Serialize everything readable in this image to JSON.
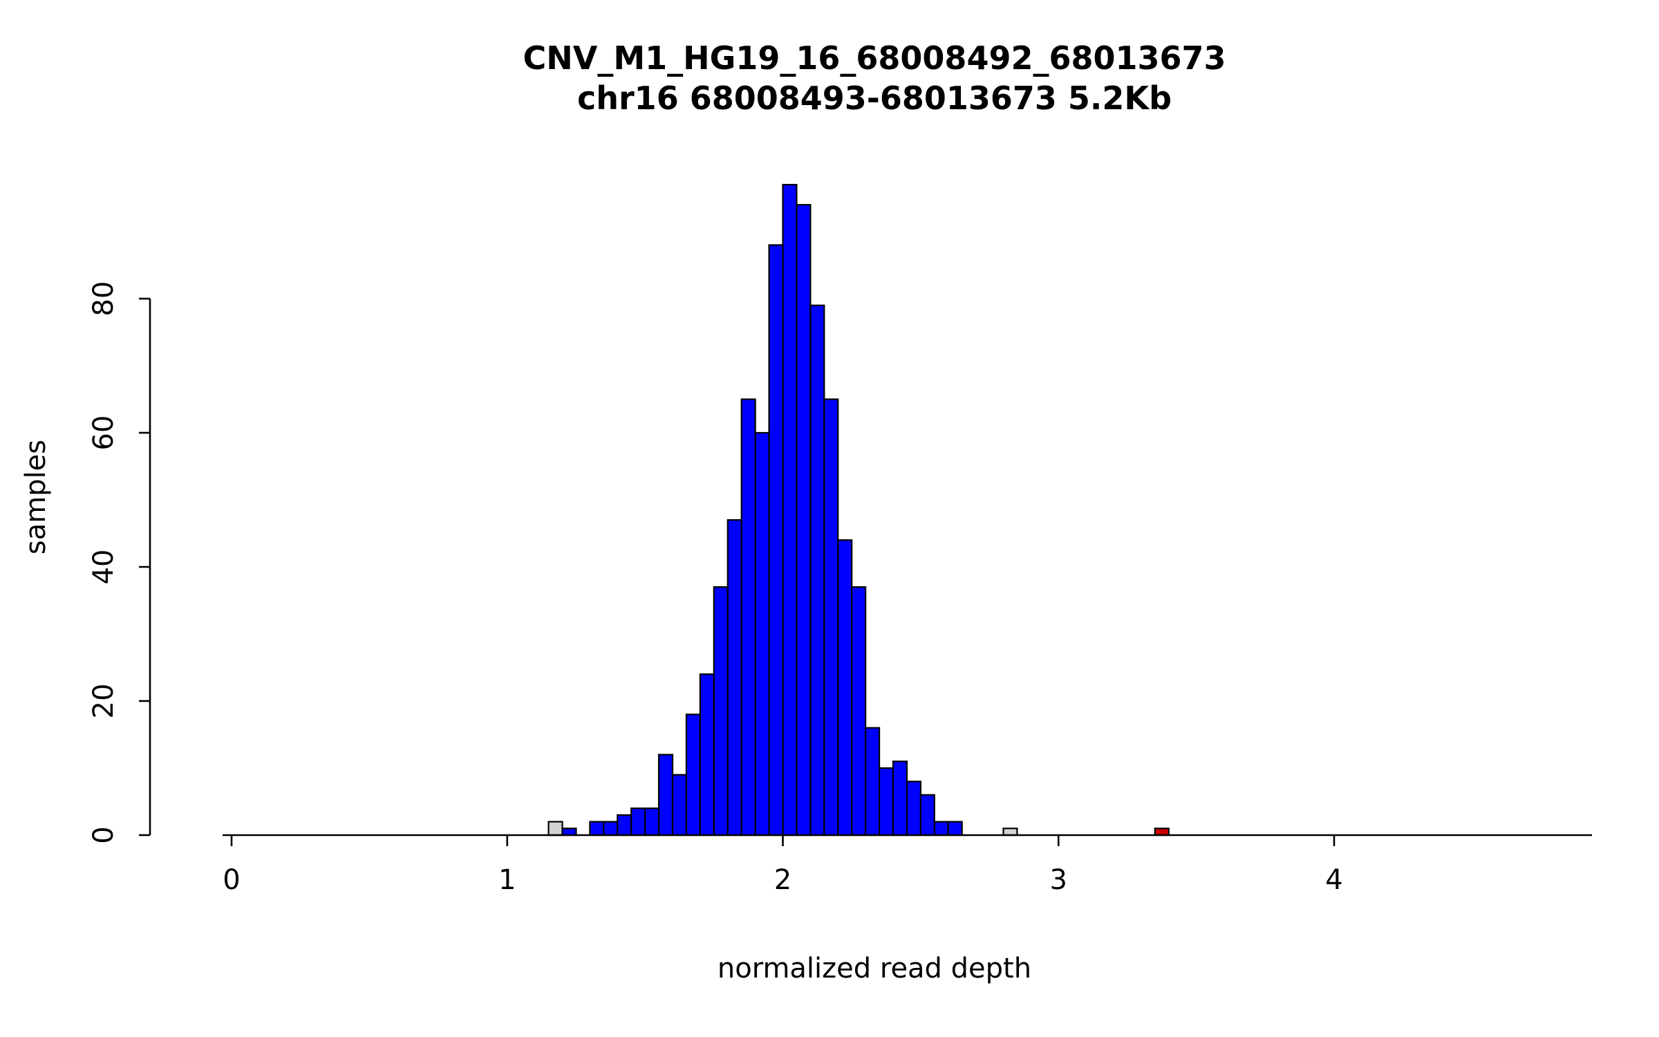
{
  "chart_data": {
    "type": "bar",
    "chart_kind": "histogram",
    "title": "CNV_M1_HG19_16_68008492_68013673",
    "subtitle": "chr16 68008493-68013673 5.2Kb",
    "xlabel": "normalized read depth",
    "ylabel": "samples",
    "xlim": [
      -0.29,
      4.95
    ],
    "ylim": [
      0,
      100
    ],
    "x_ticks": [
      0,
      1,
      2,
      3,
      4
    ],
    "y_ticks": [
      0,
      20,
      40,
      60,
      80
    ],
    "grid": false,
    "legend": "none",
    "bin_width": 0.05,
    "colors": {
      "blue": "#0000FF",
      "gray": "#D3D3D3",
      "red": "#CD0000",
      "border": "#000000",
      "axis": "#000000",
      "text": "#000000"
    },
    "bins": [
      {
        "x": 1.15,
        "n": 2,
        "c": "gray"
      },
      {
        "x": 1.2,
        "n": 1,
        "c": "blue"
      },
      {
        "x": 1.3,
        "n": 2,
        "c": "blue"
      },
      {
        "x": 1.35,
        "n": 2,
        "c": "blue"
      },
      {
        "x": 1.4,
        "n": 3,
        "c": "blue"
      },
      {
        "x": 1.45,
        "n": 4,
        "c": "blue"
      },
      {
        "x": 1.5,
        "n": 4,
        "c": "blue"
      },
      {
        "x": 1.55,
        "n": 12,
        "c": "blue"
      },
      {
        "x": 1.6,
        "n": 9,
        "c": "blue"
      },
      {
        "x": 1.65,
        "n": 18,
        "c": "blue"
      },
      {
        "x": 1.7,
        "n": 24,
        "c": "blue"
      },
      {
        "x": 1.75,
        "n": 37,
        "c": "blue"
      },
      {
        "x": 1.8,
        "n": 47,
        "c": "blue"
      },
      {
        "x": 1.85,
        "n": 65,
        "c": "blue"
      },
      {
        "x": 1.9,
        "n": 60,
        "c": "blue"
      },
      {
        "x": 1.95,
        "n": 88,
        "c": "blue"
      },
      {
        "x": 2.0,
        "n": 97,
        "c": "blue"
      },
      {
        "x": 2.05,
        "n": 94,
        "c": "blue"
      },
      {
        "x": 2.1,
        "n": 79,
        "c": "blue"
      },
      {
        "x": 2.15,
        "n": 65,
        "c": "blue"
      },
      {
        "x": 2.2,
        "n": 44,
        "c": "blue"
      },
      {
        "x": 2.25,
        "n": 37,
        "c": "blue"
      },
      {
        "x": 2.3,
        "n": 16,
        "c": "blue"
      },
      {
        "x": 2.35,
        "n": 10,
        "c": "blue"
      },
      {
        "x": 2.4,
        "n": 11,
        "c": "blue"
      },
      {
        "x": 2.45,
        "n": 8,
        "c": "blue"
      },
      {
        "x": 2.5,
        "n": 6,
        "c": "blue"
      },
      {
        "x": 2.55,
        "n": 2,
        "c": "blue"
      },
      {
        "x": 2.6,
        "n": 2,
        "c": "blue"
      },
      {
        "x": 2.8,
        "n": 1,
        "c": "gray"
      },
      {
        "x": 3.35,
        "n": 1,
        "c": "red"
      }
    ]
  }
}
